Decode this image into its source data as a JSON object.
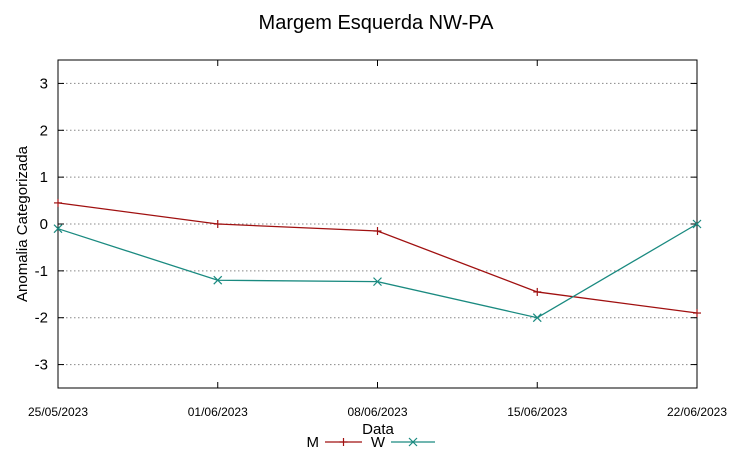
{
  "chart_data": {
    "type": "line",
    "title": "Margem Esquerda NW-PA",
    "xlabel": "Data",
    "ylabel": "Anomalia Categorizada",
    "categories": [
      "25/05/2023",
      "01/06/2023",
      "08/06/2023",
      "15/06/2023",
      "22/06/2023"
    ],
    "ylim": [
      -3.5,
      3.5
    ],
    "yticks": [
      -3,
      -2,
      -1,
      0,
      1,
      2,
      3
    ],
    "grid": true,
    "legend_position": "bottom-center",
    "series": [
      {
        "name": "M",
        "color": "#a01010",
        "marker": "plus",
        "values": [
          0.45,
          0.0,
          -0.15,
          -1.45,
          -1.9
        ]
      },
      {
        "name": "W",
        "color": "#1a8a80",
        "marker": "cross",
        "values": [
          -0.1,
          -1.2,
          -1.23,
          -2.0,
          0.0
        ]
      }
    ]
  }
}
